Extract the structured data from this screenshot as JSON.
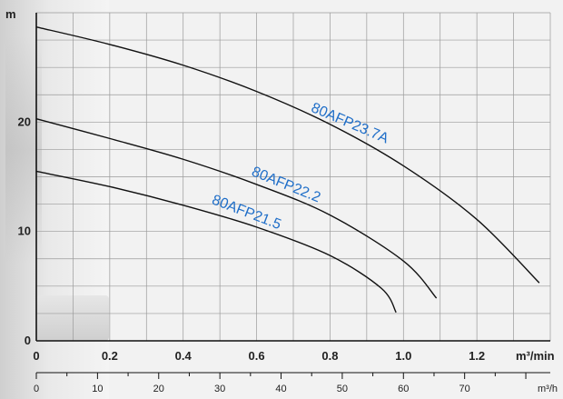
{
  "chart_data": {
    "type": "line",
    "title": "",
    "xlabel": "m³/min",
    "ylabel": "m",
    "x2label": "m³/h",
    "xlim": [
      0,
      1.4
    ],
    "ylim": [
      0,
      30
    ],
    "x2lim": [
      0,
      84
    ],
    "x_ticks": [
      "0",
      "0.2",
      "0.4",
      "0.6",
      "0.8",
      "1.0",
      "1.2"
    ],
    "x_tick_values": [
      0,
      0.2,
      0.4,
      0.6,
      0.8,
      1.0,
      1.2
    ],
    "y_ticks": [
      "0",
      "10",
      "20"
    ],
    "y_tick_values": [
      0,
      10,
      20
    ],
    "x2_ticks": [
      "0",
      "10",
      "20",
      "30",
      "40",
      "50",
      "60",
      "70"
    ],
    "x2_tick_values": [
      0,
      10,
      20,
      30,
      40,
      50,
      60,
      70
    ],
    "grid": true,
    "curve_color": "#111111",
    "label_color": "#1f6ec8",
    "series": [
      {
        "name": "80AFP23.7A",
        "x": [
          0,
          0.2,
          0.4,
          0.6,
          0.8,
          1.0,
          1.2,
          1.37
        ],
        "y": [
          28.7,
          27.1,
          25.2,
          22.8,
          19.8,
          16.0,
          11.1,
          5.3
        ]
      },
      {
        "name": "80AFP22.2",
        "x": [
          0,
          0.2,
          0.4,
          0.6,
          0.8,
          1.0,
          1.09
        ],
        "y": [
          20.3,
          18.5,
          16.6,
          14.3,
          11.5,
          7.3,
          3.9
        ]
      },
      {
        "name": "80AFP21.5",
        "x": [
          0,
          0.2,
          0.4,
          0.6,
          0.8,
          0.94,
          0.98
        ],
        "y": [
          15.5,
          14.1,
          12.4,
          10.4,
          7.8,
          4.8,
          2.6
        ]
      }
    ]
  }
}
